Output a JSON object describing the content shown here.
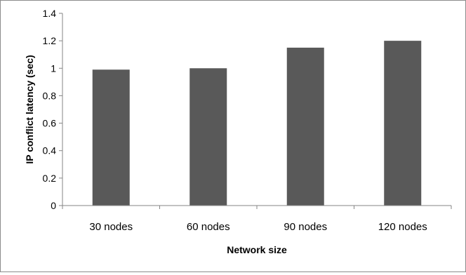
{
  "chart_data": {
    "type": "bar",
    "title": "",
    "xlabel": "Network size",
    "ylabel": "IP conflict latency (sec)",
    "categories": [
      "30 nodes",
      "60 nodes",
      "90 nodes",
      "120 nodes"
    ],
    "values": [
      0.99,
      1.0,
      1.15,
      1.2
    ],
    "ylim": [
      0,
      1.4
    ],
    "yticks": [
      "0",
      "0.2",
      "0.4",
      "0.6",
      "0.8",
      "1",
      "1.2",
      "1.4"
    ],
    "ytick_values": [
      0,
      0.2,
      0.4,
      0.6,
      0.8,
      1.0,
      1.2,
      1.4
    ],
    "grid": false,
    "legend": "none",
    "bar_color": "#595959",
    "axis_color": "#868686"
  }
}
